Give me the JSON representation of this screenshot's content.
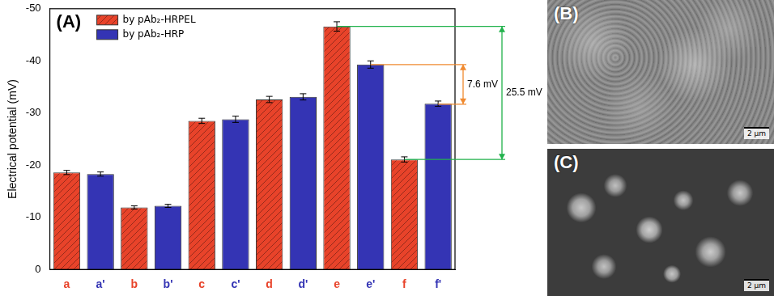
{
  "chart_data": {
    "type": "bar",
    "title": "(A)",
    "y_label": "Electrical potential (mV)",
    "categories": [
      "a",
      "a'",
      "b",
      "b'",
      "c",
      "c'",
      "d",
      "d'",
      "e",
      "e'",
      "f",
      "f'"
    ],
    "series": [
      {
        "name": "by pAb₂-HRPEL",
        "color": "#e8432a",
        "values": [
          -18.6,
          null,
          -11.9,
          null,
          -28.5,
          null,
          -32.6,
          null,
          -46.6,
          null,
          -21.1,
          null
        ],
        "errors": [
          0.4,
          null,
          0.3,
          null,
          0.5,
          null,
          0.6,
          null,
          0.9,
          null,
          0.5,
          null
        ]
      },
      {
        "name": "by pAb₂-HRP",
        "color": "#3434b4",
        "values": [
          null,
          -18.3,
          null,
          -12.2,
          null,
          -28.8,
          null,
          -33.1,
          null,
          -39.3,
          null,
          -31.8
        ],
        "errors": [
          null,
          0.4,
          null,
          0.3,
          null,
          0.6,
          null,
          0.6,
          null,
          0.7,
          null,
          0.5
        ]
      }
    ],
    "ylim": [
      0,
      -50
    ],
    "yticks": [
      0,
      -10,
      -20,
      -30,
      -40,
      -50
    ],
    "grid": false,
    "legend": "upper left",
    "annotations": [
      {
        "text": "7.6 mV",
        "y": [
          -39.3,
          -31.7
        ],
        "color": "#f08a30"
      },
      {
        "text": "25.5 mV",
        "y": [
          -46.6,
          -21.1
        ],
        "color": "#22b24c"
      }
    ]
  },
  "images": [
    {
      "label": "(B)",
      "scale_bar": "2 μm"
    },
    {
      "label": "(C)",
      "scale_bar": "2 μm"
    }
  ]
}
